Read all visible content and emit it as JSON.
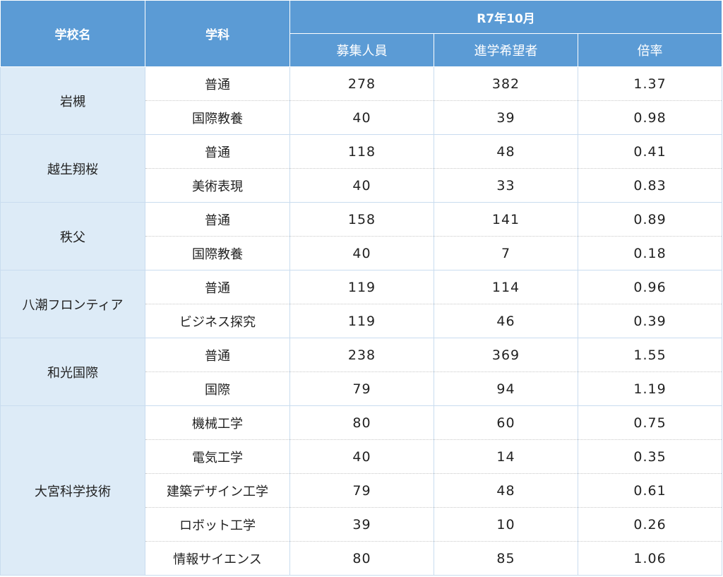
{
  "chart_data": {
    "type": "table",
    "header": {
      "school": "学校名",
      "department": "学科",
      "period": "R7年10月",
      "capacity": "募集人員",
      "applicants": "進学希望者",
      "ratio": "倍率"
    },
    "schools": [
      {
        "name": "岩槻",
        "rows": [
          {
            "department": "普通",
            "capacity": "278",
            "applicants": "382",
            "ratio": "1.37"
          },
          {
            "department": "国際教養",
            "capacity": "40",
            "applicants": "39",
            "ratio": "0.98"
          }
        ]
      },
      {
        "name": "越生翔桜",
        "rows": [
          {
            "department": "普通",
            "capacity": "118",
            "applicants": "48",
            "ratio": "0.41"
          },
          {
            "department": "美術表現",
            "capacity": "40",
            "applicants": "33",
            "ratio": "0.83"
          }
        ]
      },
      {
        "name": "秩父",
        "rows": [
          {
            "department": "普通",
            "capacity": "158",
            "applicants": "141",
            "ratio": "0.89"
          },
          {
            "department": "国際教養",
            "capacity": "40",
            "applicants": "7",
            "ratio": "0.18"
          }
        ]
      },
      {
        "name": "八潮フロンティア",
        "rows": [
          {
            "department": "普通",
            "capacity": "119",
            "applicants": "114",
            "ratio": "0.96"
          },
          {
            "department": "ビジネス探究",
            "capacity": "119",
            "applicants": "46",
            "ratio": "0.39"
          }
        ]
      },
      {
        "name": "和光国際",
        "rows": [
          {
            "department": "普通",
            "capacity": "238",
            "applicants": "369",
            "ratio": "1.55"
          },
          {
            "department": "国際",
            "capacity": "79",
            "applicants": "94",
            "ratio": "1.19"
          }
        ]
      },
      {
        "name": "大宮科学技術",
        "rows": [
          {
            "department": "機械工学",
            "capacity": "80",
            "applicants": "60",
            "ratio": "0.75"
          },
          {
            "department": "電気工学",
            "capacity": "40",
            "applicants": "14",
            "ratio": "0.35"
          },
          {
            "department": "建築デザイン工学",
            "capacity": "79",
            "applicants": "48",
            "ratio": "0.61"
          },
          {
            "department": "ロボット工学",
            "capacity": "39",
            "applicants": "10",
            "ratio": "0.26"
          },
          {
            "department": "情報サイエンス",
            "capacity": "80",
            "applicants": "85",
            "ratio": "1.06"
          }
        ]
      }
    ]
  },
  "colors": {
    "header_bg": "#5b9bd5",
    "school_bg": "#ddebf7",
    "border": "#c9dcef"
  }
}
